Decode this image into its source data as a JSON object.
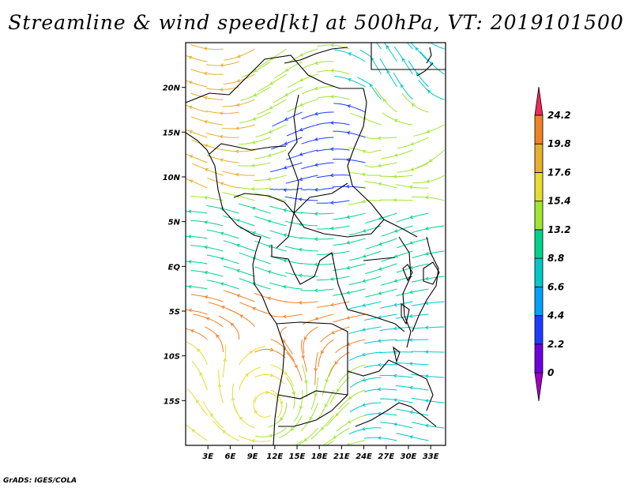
{
  "title": "Streamline & wind speed[kt] at 500hPa, VT: 2019101500",
  "footer": "GrADS: IGES/COLA",
  "map": {
    "lon_range": [
      0,
      35
    ],
    "lat_range": [
      -20,
      25
    ],
    "lat_ticks": [
      {
        "value": 20,
        "label": "20N"
      },
      {
        "value": 15,
        "label": "15N"
      },
      {
        "value": 10,
        "label": "10N"
      },
      {
        "value": 5,
        "label": "5N"
      },
      {
        "value": 0,
        "label": "EQ"
      },
      {
        "value": -5,
        "label": "5S"
      },
      {
        "value": -10,
        "label": "10S"
      },
      {
        "value": -15,
        "label": "15S"
      }
    ],
    "lon_ticks": [
      {
        "value": 3,
        "label": "3E"
      },
      {
        "value": 6,
        "label": "6E"
      },
      {
        "value": 9,
        "label": "9E"
      },
      {
        "value": 12,
        "label": "12E"
      },
      {
        "value": 15,
        "label": "15E"
      },
      {
        "value": 18,
        "label": "18E"
      },
      {
        "value": 21,
        "label": "21E"
      },
      {
        "value": 24,
        "label": "24E"
      },
      {
        "value": 27,
        "label": "27E"
      },
      {
        "value": 30,
        "label": "30E"
      },
      {
        "value": 33,
        "label": "33E"
      }
    ]
  },
  "colorbar": {
    "levels": [
      "0",
      "2.2",
      "4.4",
      "6.6",
      "8.8",
      "13.2",
      "15.4",
      "17.6",
      "19.8",
      "24.2"
    ],
    "colors": [
      "#a000c8",
      "#6e00dc",
      "#1e3cff",
      "#00a0ff",
      "#00c8c8",
      "#00d28c",
      "#a0e632",
      "#e6dc32",
      "#e6af2d",
      "#f08228",
      "#f0285a"
    ]
  }
}
